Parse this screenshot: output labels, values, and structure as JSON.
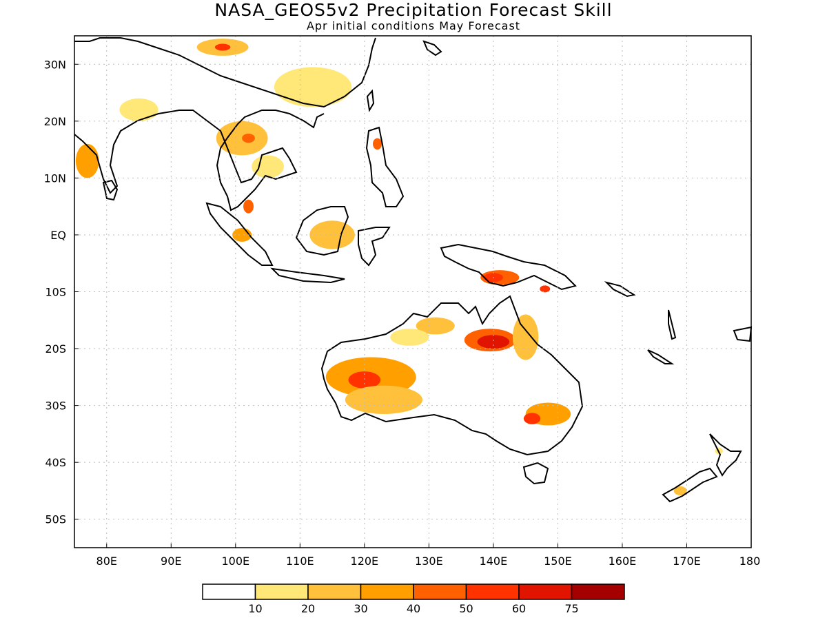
{
  "title": "NASA_GEOS5v2 Precipitation Forecast Skill",
  "subtitle": "Apr initial conditions   May Forecast",
  "map": {
    "lon_range": [
      75,
      180
    ],
    "lat_range": [
      -55,
      35
    ],
    "lon_ticks": [
      {
        "value": 80,
        "label": "80E"
      },
      {
        "value": 90,
        "label": "90E"
      },
      {
        "value": 100,
        "label": "100E"
      },
      {
        "value": 110,
        "label": "110E"
      },
      {
        "value": 120,
        "label": "120E"
      },
      {
        "value": 130,
        "label": "130E"
      },
      {
        "value": 140,
        "label": "140E"
      },
      {
        "value": 150,
        "label": "150E"
      },
      {
        "value": 160,
        "label": "160E"
      },
      {
        "value": 170,
        "label": "170E"
      },
      {
        "value": 180,
        "label": "180"
      }
    ],
    "lat_ticks": [
      {
        "value": 30,
        "label": "30N"
      },
      {
        "value": 20,
        "label": "20N"
      },
      {
        "value": 10,
        "label": "10N"
      },
      {
        "value": 0,
        "label": "EQ"
      },
      {
        "value": -10,
        "label": "10S"
      },
      {
        "value": -20,
        "label": "20S"
      },
      {
        "value": -30,
        "label": "30S"
      },
      {
        "value": -40,
        "label": "40S"
      },
      {
        "value": -50,
        "label": "50S"
      }
    ],
    "grid": true,
    "skill_regions": [
      {
        "name": "W Australia",
        "lon": 121,
        "lat": -25,
        "rx": 7,
        "ry": 3.5,
        "level": 3
      },
      {
        "name": "W Australia core",
        "lon": 120,
        "lat": -25.5,
        "rx": 2.5,
        "ry": 1.5,
        "level": 5
      },
      {
        "name": "W Australia band",
        "lon": 123,
        "lat": -29,
        "rx": 6,
        "ry": 2.5,
        "level": 2
      },
      {
        "name": "N Queensland",
        "lon": 139.5,
        "lat": -18.5,
        "rx": 4,
        "ry": 2,
        "level": 4
      },
      {
        "name": "N Queensland core",
        "lon": 140,
        "lat": -18.8,
        "rx": 2.5,
        "ry": 1.2,
        "level": 6
      },
      {
        "name": "Queensland coast",
        "lon": 145,
        "lat": -18,
        "rx": 2,
        "ry": 4,
        "level": 2
      },
      {
        "name": "Top End",
        "lon": 131,
        "lat": -16,
        "rx": 3,
        "ry": 1.5,
        "level": 2
      },
      {
        "name": "Kimberley",
        "lon": 127,
        "lat": -18,
        "rx": 3,
        "ry": 1.5,
        "level": 1
      },
      {
        "name": "SE Australia",
        "lon": 148.5,
        "lat": -31.5,
        "rx": 3.5,
        "ry": 2,
        "level": 3
      },
      {
        "name": "SE Australia core",
        "lon": 146,
        "lat": -32.3,
        "rx": 1.3,
        "ry": 1,
        "level": 5
      },
      {
        "name": "New Guinea",
        "lon": 141,
        "lat": -7.5,
        "rx": 3,
        "ry": 1.3,
        "level": 4
      },
      {
        "name": "New Guinea core",
        "lon": 140,
        "lat": -7.5,
        "rx": 1.5,
        "ry": 0.8,
        "level": 5
      },
      {
        "name": "Borneo",
        "lon": 115,
        "lat": 0,
        "rx": 3.5,
        "ry": 2.5,
        "level": 2
      },
      {
        "name": "Sumatra",
        "lon": 101,
        "lat": 0,
        "rx": 1.5,
        "ry": 1.2,
        "level": 3
      },
      {
        "name": "Malaya",
        "lon": 102,
        "lat": 5,
        "rx": 0.8,
        "ry": 1.2,
        "level": 4
      },
      {
        "name": "Indochina",
        "lon": 101,
        "lat": 17,
        "rx": 4,
        "ry": 3,
        "level": 2
      },
      {
        "name": "Indochina core",
        "lon": 102,
        "lat": 17,
        "rx": 1,
        "ry": 0.8,
        "level": 4
      },
      {
        "name": "S China",
        "lon": 112,
        "lat": 26,
        "rx": 6,
        "ry": 3.5,
        "level": 1
      },
      {
        "name": "Himalaya",
        "lon": 98,
        "lat": 33,
        "rx": 4,
        "ry": 1.5,
        "level": 2
      },
      {
        "name": "Himalaya core",
        "lon": 98,
        "lat": 33,
        "rx": 1.2,
        "ry": 0.6,
        "level": 5
      },
      {
        "name": "W India",
        "lon": 77,
        "lat": 13,
        "rx": 1.8,
        "ry": 3,
        "level": 3
      },
      {
        "name": "C India",
        "lon": 85,
        "lat": 22,
        "rx": 3,
        "ry": 2,
        "level": 1
      },
      {
        "name": "Philippines",
        "lon": 122,
        "lat": 16,
        "rx": 0.7,
        "ry": 1,
        "level": 4
      },
      {
        "name": "Hainan",
        "lon": 105,
        "lat": 12,
        "rx": 2.5,
        "ry": 2,
        "level": 1
      },
      {
        "name": "New Zealand S",
        "lon": 169,
        "lat": -45,
        "rx": 1,
        "ry": 0.8,
        "level": 2
      },
      {
        "name": "New Zealand N",
        "lon": 175,
        "lat": -38,
        "rx": 0.6,
        "ry": 0.6,
        "level": 1
      },
      {
        "name": "Papua E",
        "lon": 148,
        "lat": -9.5,
        "rx": 0.8,
        "ry": 0.6,
        "level": 5
      }
    ]
  },
  "colorbar": {
    "colors": [
      "#ffffff",
      "#ffe878",
      "#ffc03c",
      "#ffa000",
      "#ff6000",
      "#ff3200",
      "#e11400",
      "#a50000"
    ],
    "labels": [
      "10",
      "20",
      "30",
      "40",
      "50",
      "60",
      "75"
    ]
  }
}
